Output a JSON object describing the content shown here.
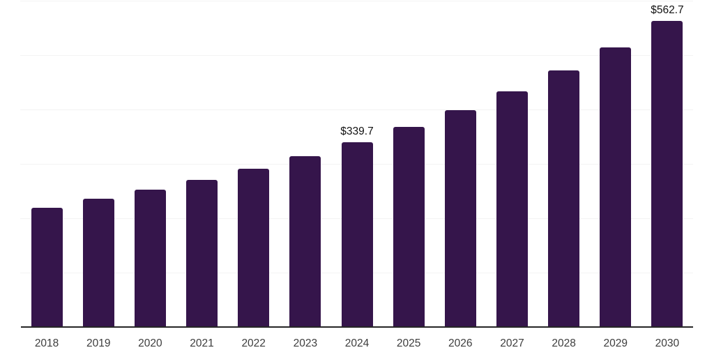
{
  "chart_data": {
    "type": "bar",
    "title": "",
    "xlabel": "",
    "ylabel": "",
    "categories": [
      "2018",
      "2019",
      "2020",
      "2021",
      "2022",
      "2023",
      "2024",
      "2025",
      "2026",
      "2027",
      "2028",
      "2029",
      "2030"
    ],
    "values": [
      219.0,
      234.9,
      252.1,
      269.7,
      289.9,
      313.7,
      339.7,
      366.8,
      398.0,
      432.9,
      471.4,
      514.0,
      562.7
    ],
    "data_labels": [
      {
        "category": "2024",
        "label": "$339.7"
      },
      {
        "category": "2030",
        "label": "$562.7"
      }
    ],
    "ylim": [
      0,
      600
    ],
    "gridline_step": 100,
    "y_axis_tick_labels_visible": false,
    "grid": "horizontal",
    "legend_position": "none",
    "colors": {
      "bar": "#35154B",
      "grid": "#F3F3F3",
      "axis": "#262626",
      "data_label": "#111111",
      "tick_label": "#3D3D3D",
      "background": "#FFFFFF"
    }
  }
}
